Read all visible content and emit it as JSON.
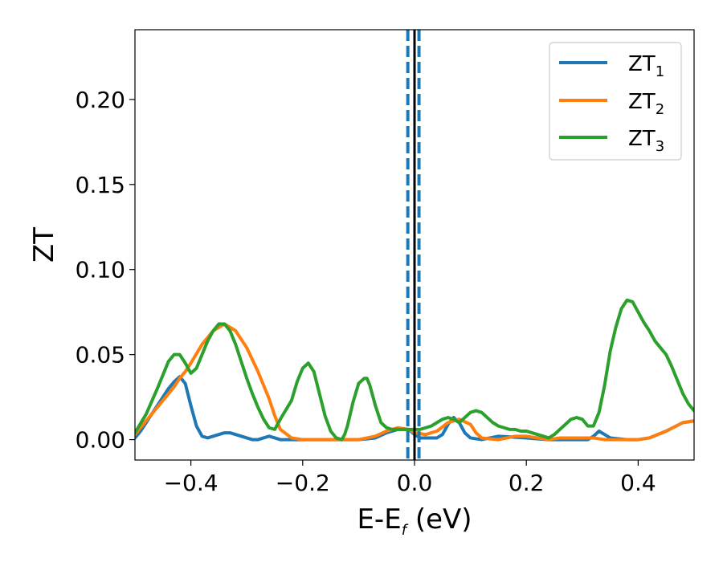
{
  "chart_data": {
    "type": "line",
    "xlabel": "E-E",
    "xlabel_sub": "f",
    "xlabel_unit": " (eV)",
    "ylabel": "ZT",
    "xlim": [
      -0.5,
      0.5
    ],
    "ylim": [
      -0.012,
      0.241
    ],
    "xticks": [
      -0.4,
      -0.2,
      0.0,
      0.2,
      0.4
    ],
    "xtick_labels": [
      "−0.4",
      "−0.2",
      "0.0",
      "0.2",
      "0.4"
    ],
    "yticks": [
      0.0,
      0.05,
      0.1,
      0.15,
      0.2
    ],
    "ytick_labels": [
      "0.00",
      "0.05",
      "0.10",
      "0.15",
      "0.20"
    ],
    "grid": false,
    "legend_position": "top-right",
    "reference_lines": [
      {
        "x": 0.0,
        "style": "solid",
        "color": "#000000"
      },
      {
        "x": -0.012,
        "style": "dashed",
        "color": "#1f77b4"
      },
      {
        "x": 0.008,
        "style": "dashed",
        "color": "#1f77b4"
      }
    ],
    "series": [
      {
        "name": "ZT",
        "name_sub": "1",
        "color": "#1f77b4",
        "x": [
          -0.5,
          -0.49,
          -0.48,
          -0.47,
          -0.46,
          -0.45,
          -0.44,
          -0.43,
          -0.42,
          -0.41,
          -0.4,
          -0.39,
          -0.38,
          -0.37,
          -0.36,
          -0.35,
          -0.34,
          -0.33,
          -0.32,
          -0.31,
          -0.3,
          -0.29,
          -0.28,
          -0.27,
          -0.26,
          -0.25,
          -0.24,
          -0.2,
          -0.15,
          -0.1,
          -0.07,
          -0.05,
          -0.03,
          -0.01,
          0.0,
          0.01,
          0.02,
          0.03,
          0.04,
          0.05,
          0.06,
          0.07,
          0.08,
          0.09,
          0.1,
          0.12,
          0.15,
          0.2,
          0.24,
          0.26,
          0.28,
          0.3,
          0.31,
          0.32,
          0.33,
          0.34,
          0.35,
          0.38,
          0.4,
          0.42,
          0.45,
          0.48,
          0.5
        ],
        "y": [
          0.001,
          0.005,
          0.01,
          0.015,
          0.02,
          0.025,
          0.03,
          0.034,
          0.037,
          0.033,
          0.02,
          0.008,
          0.002,
          0.001,
          0.002,
          0.003,
          0.004,
          0.004,
          0.003,
          0.002,
          0.001,
          0.0,
          0.0,
          0.001,
          0.002,
          0.001,
          0.0,
          0.0,
          0.0,
          0.0,
          0.001,
          0.004,
          0.006,
          0.006,
          0.003,
          0.001,
          0.001,
          0.001,
          0.001,
          0.003,
          0.009,
          0.013,
          0.01,
          0.004,
          0.001,
          0.0,
          0.002,
          0.001,
          0.0,
          0.0,
          0.0,
          0.0,
          0.0,
          0.002,
          0.005,
          0.003,
          0.001,
          0.0,
          0.0,
          0.001,
          0.005,
          0.01,
          0.011
        ]
      },
      {
        "name": "ZT",
        "name_sub": "2",
        "color": "#ff7f0e",
        "x": [
          -0.5,
          -0.49,
          -0.48,
          -0.47,
          -0.46,
          -0.45,
          -0.44,
          -0.43,
          -0.42,
          -0.41,
          -0.4,
          -0.38,
          -0.36,
          -0.34,
          -0.32,
          -0.3,
          -0.28,
          -0.26,
          -0.25,
          -0.24,
          -0.22,
          -0.2,
          -0.15,
          -0.1,
          -0.07,
          -0.05,
          -0.03,
          -0.01,
          0.0,
          0.02,
          0.04,
          0.06,
          0.08,
          0.1,
          0.11,
          0.12,
          0.15,
          0.18,
          0.2,
          0.22,
          0.24,
          0.26,
          0.3,
          0.32,
          0.34,
          0.36,
          0.4,
          0.42,
          0.45,
          0.48,
          0.5
        ],
        "y": [
          0.003,
          0.007,
          0.011,
          0.015,
          0.019,
          0.023,
          0.027,
          0.031,
          0.036,
          0.04,
          0.045,
          0.056,
          0.064,
          0.068,
          0.064,
          0.054,
          0.04,
          0.024,
          0.014,
          0.006,
          0.001,
          0.0,
          0.0,
          0.0,
          0.002,
          0.005,
          0.007,
          0.006,
          0.004,
          0.003,
          0.005,
          0.01,
          0.012,
          0.009,
          0.004,
          0.001,
          0.0,
          0.002,
          0.002,
          0.001,
          0.0,
          0.001,
          0.001,
          0.001,
          0.0,
          0.0,
          0.0,
          0.001,
          0.005,
          0.01,
          0.011
        ]
      },
      {
        "name": "ZT",
        "name_sub": "3",
        "color": "#2ca02c",
        "x": [
          -0.5,
          -0.48,
          -0.46,
          -0.44,
          -0.43,
          -0.42,
          -0.41,
          -0.4,
          -0.39,
          -0.38,
          -0.37,
          -0.36,
          -0.35,
          -0.34,
          -0.33,
          -0.32,
          -0.31,
          -0.3,
          -0.29,
          -0.28,
          -0.27,
          -0.26,
          -0.25,
          -0.24,
          -0.22,
          -0.21,
          -0.2,
          -0.19,
          -0.18,
          -0.17,
          -0.16,
          -0.15,
          -0.14,
          -0.13,
          -0.125,
          -0.12,
          -0.11,
          -0.1,
          -0.09,
          -0.085,
          -0.08,
          -0.07,
          -0.06,
          -0.05,
          -0.04,
          -0.03,
          -0.02,
          -0.01,
          0.0,
          0.01,
          0.02,
          0.03,
          0.04,
          0.05,
          0.06,
          0.07,
          0.08,
          0.09,
          0.1,
          0.11,
          0.12,
          0.13,
          0.14,
          0.15,
          0.16,
          0.17,
          0.18,
          0.19,
          0.2,
          0.21,
          0.22,
          0.23,
          0.24,
          0.25,
          0.26,
          0.27,
          0.28,
          0.29,
          0.3,
          0.31,
          0.32,
          0.33,
          0.34,
          0.35,
          0.36,
          0.37,
          0.38,
          0.39,
          0.4,
          0.41,
          0.42,
          0.43,
          0.44,
          0.45,
          0.46,
          0.47,
          0.48,
          0.49,
          0.5
        ],
        "y": [
          0.004,
          0.015,
          0.03,
          0.046,
          0.05,
          0.05,
          0.045,
          0.039,
          0.042,
          0.05,
          0.058,
          0.064,
          0.068,
          0.068,
          0.064,
          0.056,
          0.046,
          0.036,
          0.027,
          0.019,
          0.012,
          0.007,
          0.006,
          0.012,
          0.023,
          0.034,
          0.042,
          0.045,
          0.04,
          0.027,
          0.014,
          0.005,
          0.001,
          0.0,
          0.003,
          0.008,
          0.022,
          0.033,
          0.036,
          0.036,
          0.032,
          0.02,
          0.01,
          0.007,
          0.006,
          0.006,
          0.006,
          0.006,
          0.006,
          0.006,
          0.007,
          0.008,
          0.01,
          0.012,
          0.013,
          0.012,
          0.01,
          0.013,
          0.016,
          0.017,
          0.016,
          0.013,
          0.01,
          0.008,
          0.007,
          0.006,
          0.006,
          0.005,
          0.005,
          0.004,
          0.003,
          0.002,
          0.001,
          0.003,
          0.006,
          0.009,
          0.012,
          0.013,
          0.012,
          0.008,
          0.008,
          0.016,
          0.032,
          0.052,
          0.066,
          0.077,
          0.082,
          0.081,
          0.075,
          0.069,
          0.064,
          0.058,
          0.054,
          0.05,
          0.043,
          0.035,
          0.027,
          0.021,
          0.017
        ]
      }
    ]
  }
}
